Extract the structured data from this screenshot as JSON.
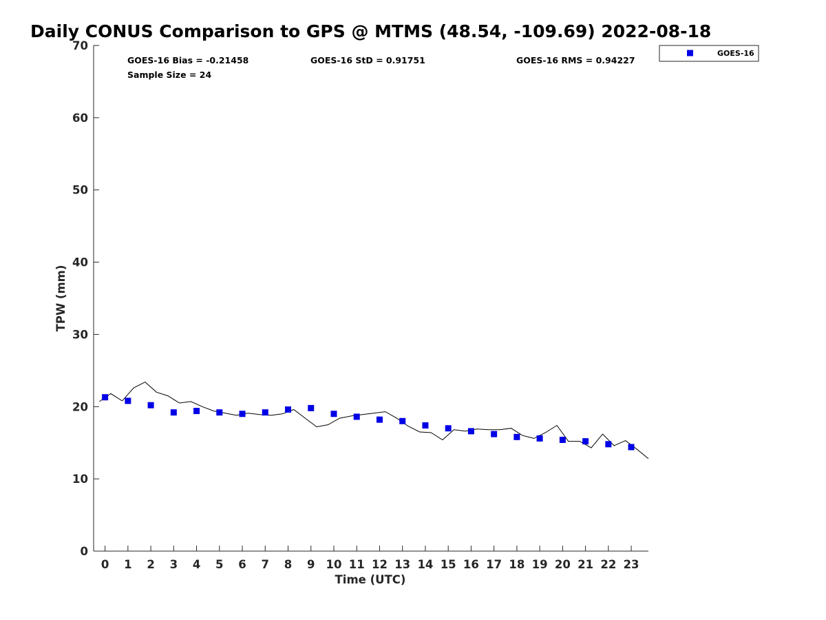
{
  "chart_data": {
    "type": "scatter",
    "title": "Daily CONUS Comparison to GPS @ MTMS (48.54, -109.69) 2022-08-18",
    "xlabel": "Time (UTC)",
    "ylabel": "TPW (mm)",
    "xlim": [
      -0.5,
      23.75
    ],
    "ylim": [
      0,
      70
    ],
    "x_ticks": [
      "0",
      "1",
      "2",
      "3",
      "4",
      "5",
      "6",
      "7",
      "8",
      "9",
      "10",
      "11",
      "12",
      "13",
      "14",
      "15",
      "16",
      "17",
      "18",
      "19",
      "20",
      "21",
      "22",
      "23"
    ],
    "y_ticks": [
      "0",
      "10",
      "20",
      "30",
      "40",
      "50",
      "60",
      "70"
    ],
    "grid": false,
    "legend_position": "top-right",
    "stats": {
      "bias": "GOES-16 Bias = -0.21458",
      "std": "GOES-16 StD = 0.91751",
      "rms": "GOES-16 RMS = 0.94227",
      "sample_size": "Sample Size = 24"
    },
    "series": [
      {
        "name": "GOES-16",
        "kind": "scatter",
        "marker": "square",
        "color": "#0000e6",
        "x": [
          0,
          1,
          2,
          3,
          4,
          5,
          6,
          7,
          8,
          9,
          10,
          11,
          12,
          13,
          14,
          15,
          16,
          17,
          18,
          19,
          20,
          21,
          22,
          23
        ],
        "y": [
          21.3,
          20.8,
          20.2,
          19.2,
          19.4,
          19.2,
          19.0,
          19.2,
          19.6,
          19.8,
          19.0,
          18.6,
          18.2,
          18.0,
          17.4,
          17.0,
          16.6,
          16.2,
          15.8,
          15.6,
          15.4,
          15.2,
          14.8,
          14.4
        ]
      },
      {
        "kind": "line",
        "color": "#000000",
        "x": [
          -0.25,
          0.25,
          0.75,
          1.25,
          1.75,
          2.25,
          2.75,
          3.25,
          3.75,
          4.25,
          4.75,
          5.25,
          5.75,
          6.25,
          6.75,
          7.25,
          7.75,
          8.25,
          8.75,
          9.25,
          9.75,
          10.25,
          10.75,
          11.25,
          11.75,
          12.25,
          12.75,
          13.25,
          13.75,
          14.25,
          14.75,
          15.25,
          15.75,
          16.25,
          16.75,
          17.25,
          17.75,
          18.25,
          18.75,
          19.25,
          19.75,
          20.25,
          20.75,
          21.25,
          21.75,
          22.25,
          22.75,
          23.25,
          23.75
        ],
        "y": [
          20.7,
          21.8,
          20.8,
          22.6,
          23.4,
          22.0,
          21.5,
          20.5,
          20.7,
          20.0,
          19.4,
          19.1,
          18.8,
          19.1,
          18.9,
          18.8,
          19.0,
          19.6,
          18.4,
          17.2,
          17.5,
          18.4,
          18.7,
          18.9,
          19.1,
          19.3,
          18.4,
          17.3,
          16.5,
          16.4,
          15.4,
          16.8,
          16.6,
          16.9,
          16.8,
          16.8,
          17.0,
          16.0,
          15.6,
          16.4,
          17.4,
          15.2,
          15.2,
          14.3,
          16.2,
          14.6,
          15.3,
          14.1,
          12.8
        ]
      }
    ]
  }
}
